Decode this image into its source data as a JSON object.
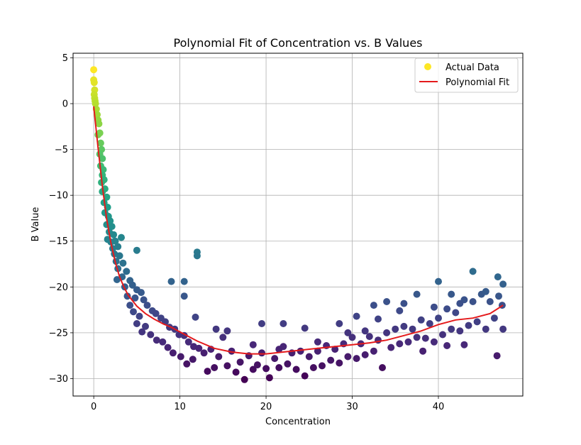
{
  "chart_data": {
    "type": "scatter",
    "title": "Polynomial Fit of Concentration vs. B Values",
    "xlabel": "Concentration",
    "ylabel": "B Value",
    "xlim": [
      -2.4,
      49.8
    ],
    "ylim": [
      -31.9,
      5.5
    ],
    "xticks": [
      0,
      10,
      20,
      30,
      40
    ],
    "yticks": [
      5,
      0,
      -5,
      -10,
      -15,
      -20,
      -25,
      -30
    ],
    "tick_labels_x": [
      "0",
      "10",
      "20",
      "30",
      "40"
    ],
    "tick_labels_y": [
      "5",
      "0",
      "−5",
      "−10",
      "−15",
      "−20",
      "−25",
      "−30"
    ],
    "grid": true,
    "colormap": "viridis",
    "fit_color": "#e41a1c",
    "legend": {
      "placement": "top-right",
      "entries": [
        {
          "label": "Actual Data",
          "marker": "circle",
          "color": "#fde725"
        },
        {
          "label": "Polynomial Fit",
          "marker": "line",
          "color": "#e41a1c"
        }
      ]
    },
    "series": [
      {
        "name": "Actual Data",
        "kind": "scatter",
        "points": [
          [
            0.0,
            3.7
          ],
          [
            0.0,
            2.6
          ],
          [
            0.05,
            2.3
          ],
          [
            0.1,
            1.5
          ],
          [
            0.05,
            1.0
          ],
          [
            0.1,
            0.6
          ],
          [
            0.15,
            0.3
          ],
          [
            0.2,
            0.0
          ],
          [
            0.3,
            -0.6
          ],
          [
            0.4,
            -1.2
          ],
          [
            0.5,
            -1.8
          ],
          [
            0.6,
            -2.2
          ],
          [
            0.5,
            -3.4
          ],
          [
            0.7,
            -3.2
          ],
          [
            0.8,
            -4.3
          ],
          [
            0.9,
            -5.0
          ],
          [
            0.7,
            -5.5
          ],
          [
            1.0,
            -6.0
          ],
          [
            0.8,
            -6.8
          ],
          [
            1.1,
            -7.2
          ],
          [
            1.0,
            -7.8
          ],
          [
            1.2,
            -8.3
          ],
          [
            0.9,
            -8.6
          ],
          [
            1.3,
            -9.3
          ],
          [
            1.0,
            -9.6
          ],
          [
            1.5,
            -10.2
          ],
          [
            1.2,
            -10.8
          ],
          [
            1.6,
            -11.3
          ],
          [
            1.3,
            -11.9
          ],
          [
            1.7,
            -12.3
          ],
          [
            1.9,
            -12.8
          ],
          [
            1.5,
            -13.2
          ],
          [
            2.1,
            -13.4
          ],
          [
            1.8,
            -14.0
          ],
          [
            2.3,
            -14.3
          ],
          [
            1.6,
            -14.8
          ],
          [
            2.0,
            -15.1
          ],
          [
            2.5,
            -15.0
          ],
          [
            2.2,
            -15.8
          ],
          [
            2.8,
            -15.6
          ],
          [
            3.2,
            -14.6
          ],
          [
            2.4,
            -16.4
          ],
          [
            3.0,
            -16.6
          ],
          [
            2.6,
            -17.2
          ],
          [
            3.4,
            -17.4
          ],
          [
            2.8,
            -18.0
          ],
          [
            3.8,
            -18.3
          ],
          [
            2.7,
            -19.2
          ],
          [
            3.3,
            -18.9
          ],
          [
            4.2,
            -19.3
          ],
          [
            3.6,
            -20.0
          ],
          [
            4.5,
            -19.8
          ],
          [
            5.0,
            -20.3
          ],
          [
            3.9,
            -21.0
          ],
          [
            4.8,
            -21.2
          ],
          [
            5.5,
            -20.6
          ],
          [
            4.2,
            -22.0
          ],
          [
            5.8,
            -21.4
          ],
          [
            4.6,
            -22.7
          ],
          [
            6.2,
            -22.0
          ],
          [
            5.3,
            -23.2
          ],
          [
            6.8,
            -22.6
          ],
          [
            5.0,
            -24.0
          ],
          [
            7.2,
            -22.9
          ],
          [
            6.0,
            -24.3
          ],
          [
            7.8,
            -23.4
          ],
          [
            5.6,
            -24.9
          ],
          [
            8.3,
            -23.8
          ],
          [
            6.6,
            -25.2
          ],
          [
            8.8,
            -24.4
          ],
          [
            7.3,
            -25.8
          ],
          [
            9.4,
            -24.6
          ],
          [
            8.0,
            -26.0
          ],
          [
            9.9,
            -25.2
          ],
          [
            8.6,
            -26.6
          ],
          [
            10.5,
            -25.3
          ],
          [
            9.2,
            -27.2
          ],
          [
            11.0,
            -26.0
          ],
          [
            10.1,
            -27.6
          ],
          [
            11.6,
            -26.5
          ],
          [
            10.8,
            -28.4
          ],
          [
            12.2,
            -26.7
          ],
          [
            11.5,
            -27.9
          ],
          [
            12.8,
            -27.2
          ],
          [
            13.2,
            -29.2
          ],
          [
            13.6,
            -26.8
          ],
          [
            14.0,
            -28.8
          ],
          [
            14.5,
            -27.6
          ],
          [
            15.0,
            -25.5
          ],
          [
            15.5,
            -28.6
          ],
          [
            16.0,
            -27.0
          ],
          [
            16.5,
            -29.3
          ],
          [
            17.0,
            -28.2
          ],
          [
            17.5,
            -30.1
          ],
          [
            18.0,
            -27.5
          ],
          [
            18.5,
            -29.0
          ],
          [
            19.0,
            -28.5
          ],
          [
            19.5,
            -27.2
          ],
          [
            20.0,
            -28.9
          ],
          [
            20.4,
            -29.9
          ],
          [
            21.0,
            -27.8
          ],
          [
            21.5,
            -28.8
          ],
          [
            22.0,
            -26.5
          ],
          [
            22.5,
            -28.4
          ],
          [
            23.0,
            -27.2
          ],
          [
            23.5,
            -29.0
          ],
          [
            24.0,
            -27.0
          ],
          [
            24.5,
            -29.7
          ],
          [
            25.0,
            -27.6
          ],
          [
            25.5,
            -28.8
          ],
          [
            26.0,
            -27.0
          ],
          [
            26.5,
            -28.6
          ],
          [
            27.0,
            -26.4
          ],
          [
            27.5,
            -28.0
          ],
          [
            28.0,
            -26.8
          ],
          [
            28.5,
            -28.3
          ],
          [
            29.0,
            -26.2
          ],
          [
            29.5,
            -27.6
          ],
          [
            30.0,
            -25.5
          ],
          [
            30.5,
            -27.8
          ],
          [
            31.0,
            -26.2
          ],
          [
            31.5,
            -27.4
          ],
          [
            32.0,
            -25.4
          ],
          [
            32.5,
            -27.0
          ],
          [
            33.0,
            -25.8
          ],
          [
            33.5,
            -28.8
          ],
          [
            34.0,
            -25.0
          ],
          [
            34.5,
            -26.6
          ],
          [
            35.0,
            -24.6
          ],
          [
            35.5,
            -26.2
          ],
          [
            36.0,
            -24.3
          ],
          [
            36.5,
            -26.0
          ],
          [
            37.0,
            -24.6
          ],
          [
            37.5,
            -25.5
          ],
          [
            38.0,
            -23.6
          ],
          [
            38.5,
            -25.6
          ],
          [
            39.0,
            -24.0
          ],
          [
            39.5,
            -26.0
          ],
          [
            40.0,
            -23.4
          ],
          [
            40.5,
            -25.2
          ],
          [
            41.0,
            -22.4
          ],
          [
            41.5,
            -24.6
          ],
          [
            42.0,
            -22.8
          ],
          [
            42.5,
            -24.8
          ],
          [
            43.0,
            -21.4
          ],
          [
            43.5,
            -24.2
          ],
          [
            44.0,
            -21.6
          ],
          [
            44.5,
            -23.8
          ],
          [
            45.0,
            -20.8
          ],
          [
            45.5,
            -24.6
          ],
          [
            46.0,
            -21.6
          ],
          [
            46.5,
            -23.4
          ],
          [
            47.0,
            -21.0
          ],
          [
            47.5,
            -24.6
          ],
          [
            47.4,
            -22.0
          ],
          [
            5.0,
            -16.0
          ],
          [
            9.0,
            -19.4
          ],
          [
            10.5,
            -19.4
          ],
          [
            10.5,
            -21.0
          ],
          [
            11.8,
            -23.3
          ],
          [
            12.0,
            -16.2
          ],
          [
            12.0,
            -16.6
          ],
          [
            14.2,
            -24.6
          ],
          [
            15.5,
            -24.8
          ],
          [
            19.5,
            -24.0
          ],
          [
            22.0,
            -24.0
          ],
          [
            24.5,
            -24.5
          ],
          [
            28.5,
            -24.0
          ],
          [
            30.5,
            -23.2
          ],
          [
            32.5,
            -22.0
          ],
          [
            34.0,
            -21.6
          ],
          [
            36.0,
            -21.8
          ],
          [
            37.5,
            -20.8
          ],
          [
            40.0,
            -19.4
          ],
          [
            44.0,
            -18.3
          ],
          [
            46.9,
            -18.9
          ],
          [
            47.5,
            -19.7
          ],
          [
            41.5,
            -20.8
          ],
          [
            42.5,
            -21.8
          ],
          [
            45.5,
            -20.5
          ],
          [
            46.8,
            -27.5
          ],
          [
            33.0,
            -23.5
          ],
          [
            35.5,
            -22.6
          ],
          [
            39.5,
            -22.2
          ],
          [
            26.0,
            -26.0
          ],
          [
            18.5,
            -26.3
          ],
          [
            21.5,
            -26.8
          ],
          [
            29.5,
            -25.0
          ],
          [
            31.5,
            -24.8
          ],
          [
            38.2,
            -27.0
          ],
          [
            41.0,
            -26.4
          ],
          [
            43.0,
            -26.3
          ]
        ]
      },
      {
        "name": "Polynomial Fit",
        "kind": "line",
        "x": [
          0.0,
          0.5,
          1.0,
          1.5,
          2.0,
          2.5,
          3.0,
          3.5,
          4.0,
          5.0,
          6.0,
          7.0,
          8.0,
          9.0,
          10.0,
          12.0,
          14.0,
          16.0,
          18.0,
          20.0,
          22.0,
          24.0,
          26.0,
          28.0,
          30.0,
          32.0,
          34.0,
          36.0,
          38.0,
          40.0,
          42.0,
          44.0,
          46.0,
          47.5
        ],
        "y": [
          -0.3,
          -4.8,
          -9.0,
          -12.6,
          -15.2,
          -17.3,
          -18.9,
          -20.0,
          -20.9,
          -22.1,
          -22.9,
          -23.5,
          -24.0,
          -24.4,
          -24.9,
          -25.9,
          -26.7,
          -27.1,
          -27.3,
          -27.3,
          -27.1,
          -26.9,
          -26.7,
          -26.5,
          -26.3,
          -26.1,
          -25.8,
          -25.3,
          -24.8,
          -24.1,
          -23.6,
          -23.4,
          -22.9,
          -22.0
        ]
      }
    ]
  }
}
